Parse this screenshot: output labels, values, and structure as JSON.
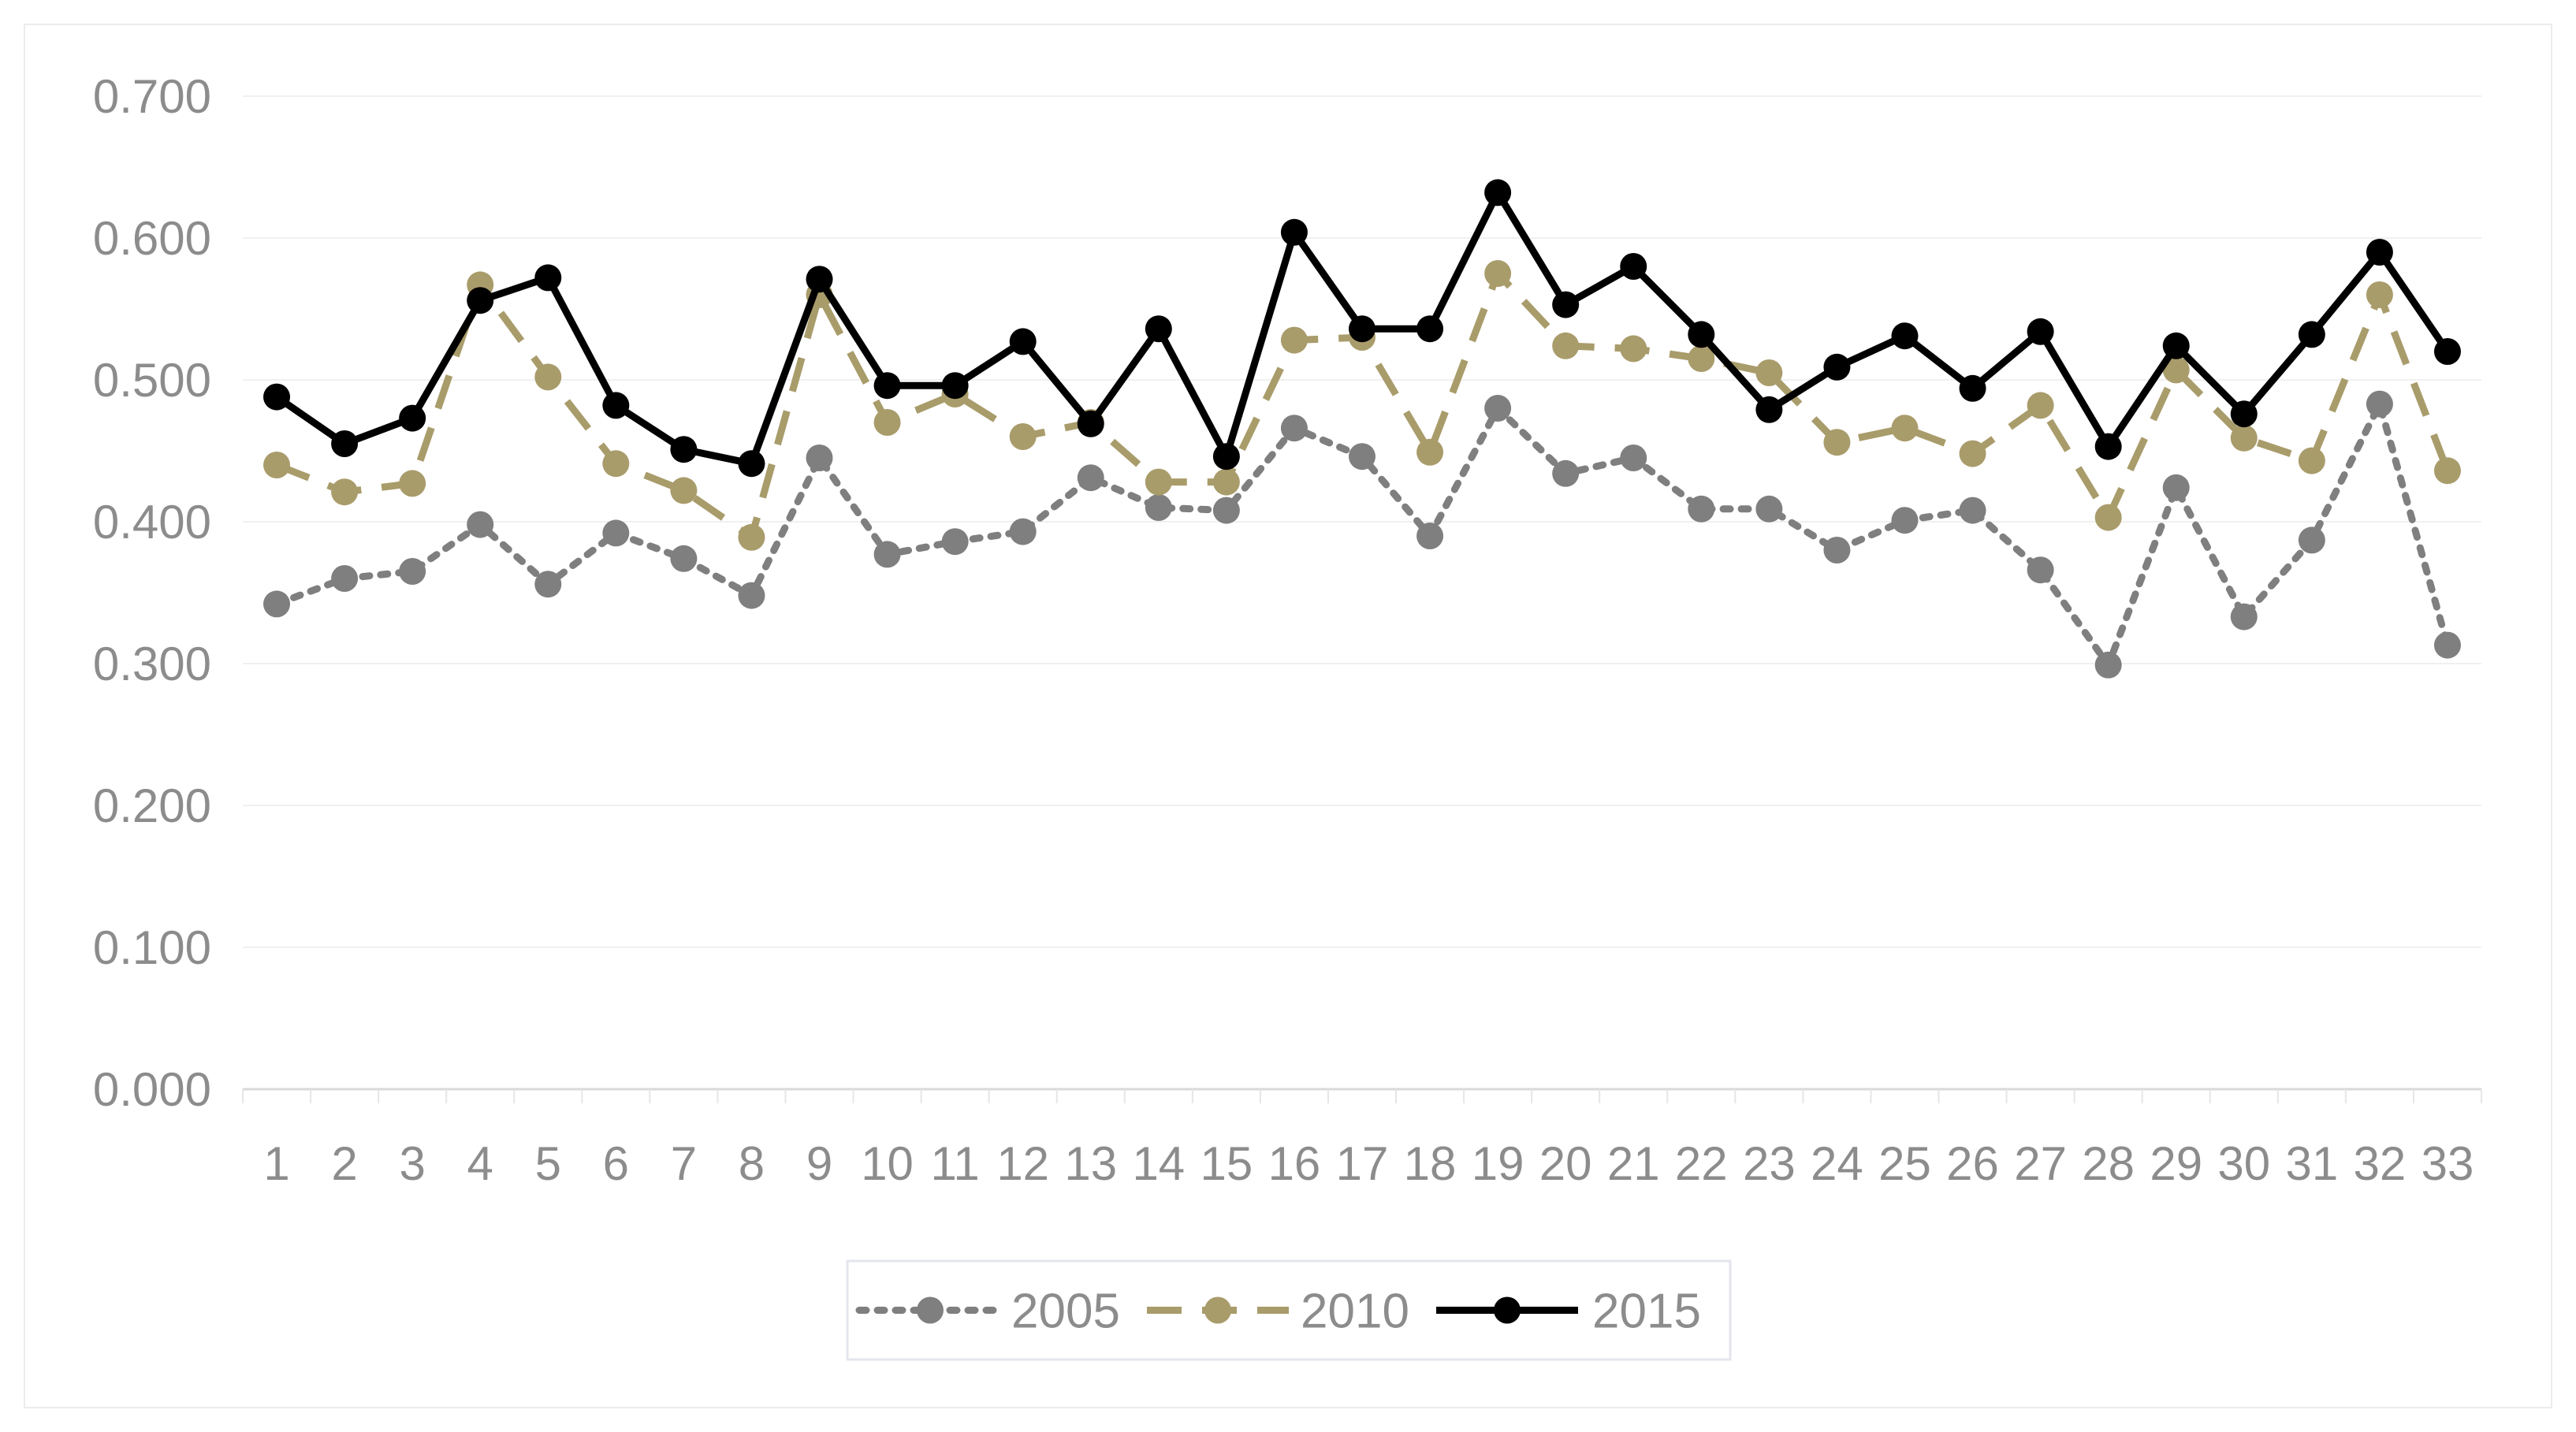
{
  "chart_data": {
    "type": "line",
    "title": "",
    "xlabel": "",
    "ylabel": "",
    "categories": [
      "1",
      "2",
      "3",
      "4",
      "5",
      "6",
      "7",
      "8",
      "9",
      "10",
      "11",
      "12",
      "13",
      "14",
      "15",
      "16",
      "17",
      "18",
      "19",
      "20",
      "21",
      "22",
      "23",
      "24",
      "25",
      "26",
      "27",
      "28",
      "29",
      "30",
      "31",
      "32",
      "33"
    ],
    "y_ticks": [
      "0.000",
      "0.100",
      "0.200",
      "0.300",
      "0.400",
      "0.500",
      "0.600",
      "0.700"
    ],
    "ylim": [
      0,
      0.7
    ],
    "grid": true,
    "legend_position": "bottom",
    "series": [
      {
        "name": "2005",
        "style": "dotted",
        "color": "#7f7f7f",
        "values": [
          0.342,
          0.36,
          0.365,
          0.398,
          0.356,
          0.392,
          0.374,
          0.348,
          0.445,
          0.377,
          0.386,
          0.393,
          0.431,
          0.41,
          0.408,
          0.466,
          0.446,
          0.39,
          0.48,
          0.434,
          0.445,
          0.409,
          0.409,
          0.38,
          0.401,
          0.408,
          0.366,
          0.299,
          0.424,
          0.333,
          0.387,
          0.483,
          0.313
        ]
      },
      {
        "name": "2010",
        "style": "dashed",
        "color": "#a99c6b",
        "values": [
          0.44,
          0.421,
          0.427,
          0.567,
          0.502,
          0.441,
          0.422,
          0.389,
          0.56,
          0.47,
          0.49,
          0.46,
          0.47,
          0.428,
          0.428,
          0.528,
          0.53,
          0.449,
          0.575,
          0.524,
          0.522,
          0.515,
          0.505,
          0.456,
          0.466,
          0.448,
          0.482,
          0.403,
          0.507,
          0.459,
          0.443,
          0.56,
          0.436
        ]
      },
      {
        "name": "2015",
        "style": "solid",
        "color": "#000000",
        "values": [
          0.488,
          0.455,
          0.473,
          0.556,
          0.572,
          0.482,
          0.451,
          0.441,
          0.571,
          0.496,
          0.496,
          0.527,
          0.469,
          0.536,
          0.446,
          0.604,
          0.536,
          0.536,
          0.632,
          0.553,
          0.58,
          0.532,
          0.479,
          0.509,
          0.531,
          0.494,
          0.534,
          0.453,
          0.524,
          0.476,
          0.532,
          0.59,
          0.52
        ]
      }
    ]
  }
}
